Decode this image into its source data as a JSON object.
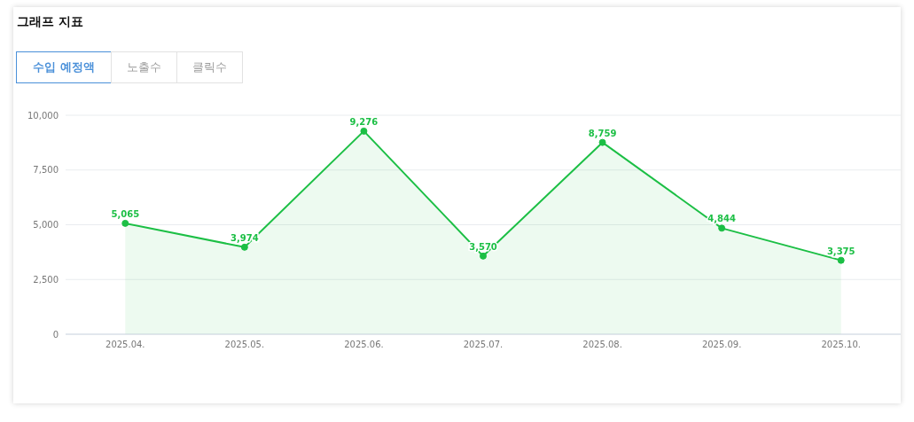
{
  "chart_data": {
    "type": "area",
    "title": "그래프 지표",
    "annotations": [
      "수입 예정액",
      "노출수",
      "클릭수"
    ],
    "categories": [
      "2025.04.",
      "2025.05.",
      "2025.06.",
      "2025.07.",
      "2025.08.",
      "2025.09.",
      "2025.10."
    ],
    "series": [
      {
        "color": "#1cbf45",
        "values": [
          5065,
          3974,
          9276,
          3570,
          8759,
          4844,
          3375
        ],
        "value_labels": [
          "5,065",
          "3,974",
          "9,276",
          "3,570",
          "8,759",
          "4,844",
          "3,375"
        ]
      }
    ],
    "ylim": [
      0,
      10000
    ],
    "yticks": [
      0,
      {
        "value": 2500,
        "label": "2,500"
      },
      {
        "value": 5000,
        "label": "5,000"
      },
      {
        "value": 7500,
        "label": "7,500"
      },
      {
        "value": 10000,
        "label": "10,000"
      }
    ],
    "grid": "y",
    "marker": "circle"
  }
}
